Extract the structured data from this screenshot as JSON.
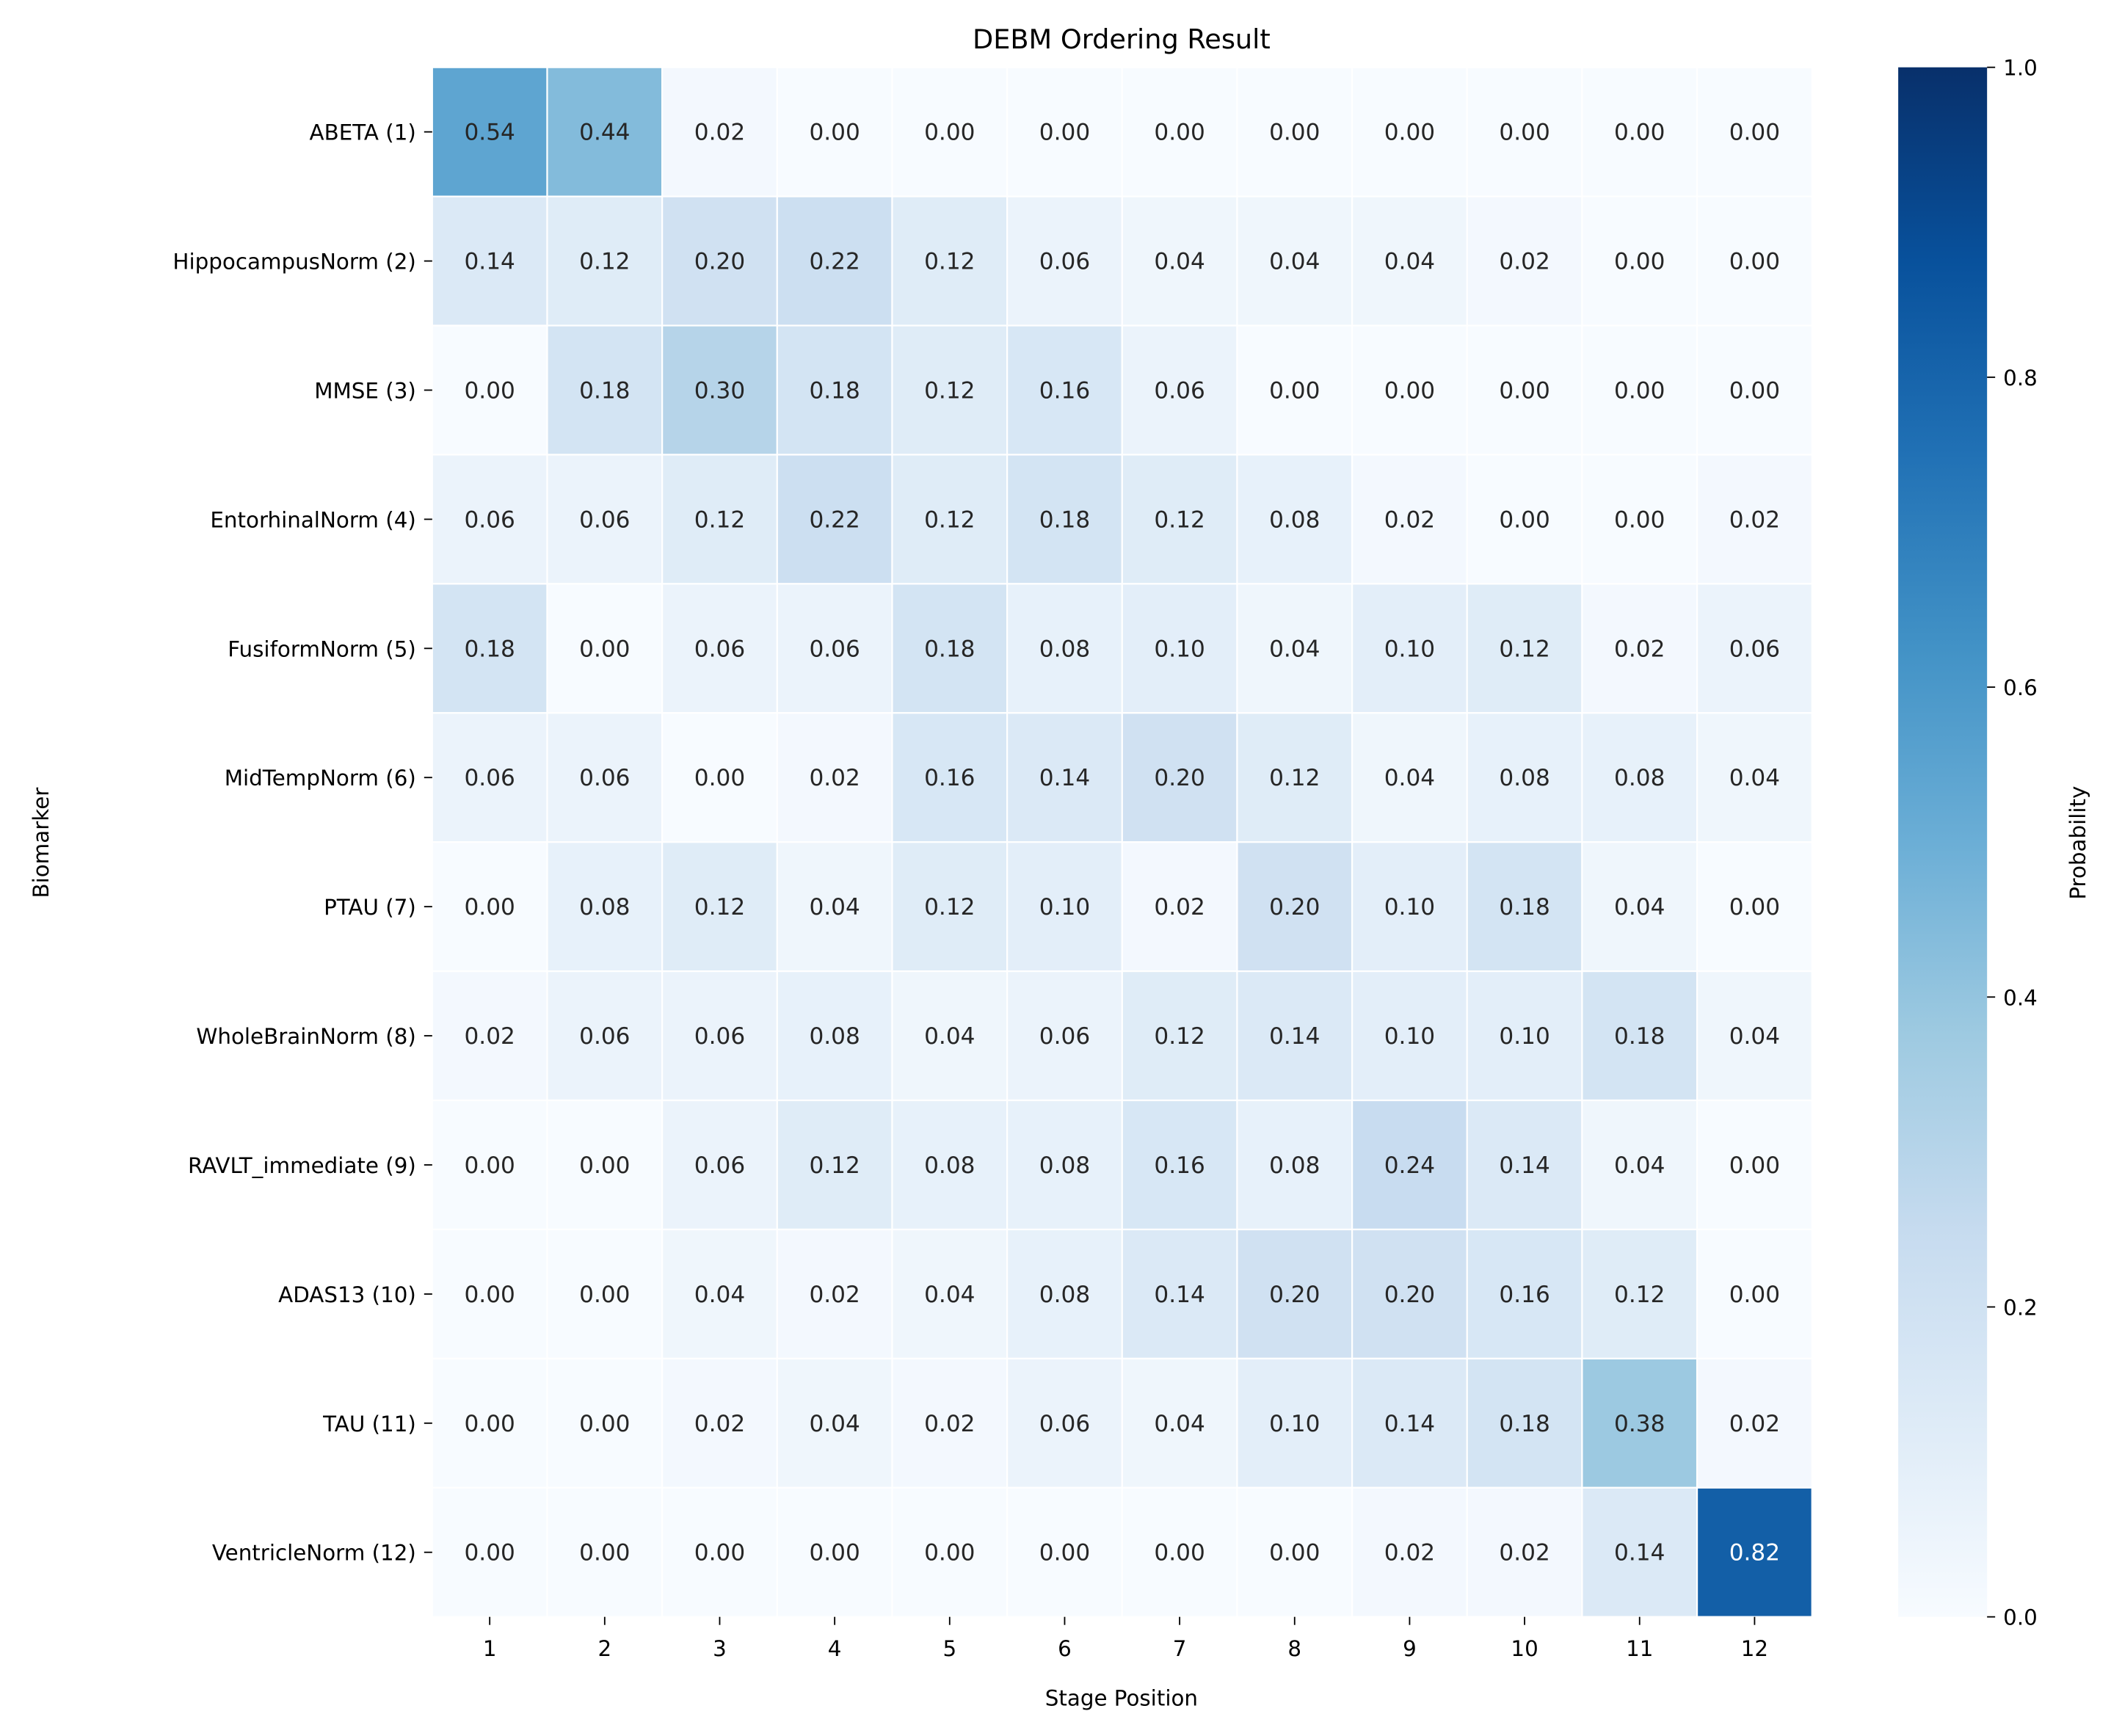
{
  "chart_data": {
    "type": "heatmap",
    "title": "DEBM Ordering Result",
    "xlabel": "Stage Position",
    "ylabel": "Biomarker",
    "colorbar_label": "Probability",
    "colormap": "Blues",
    "vmin": 0.0,
    "vmax": 1.0,
    "colorbar_ticks": [
      "0.0",
      "0.2",
      "0.4",
      "0.6",
      "0.8",
      "1.0"
    ],
    "x_categories": [
      "1",
      "2",
      "3",
      "4",
      "5",
      "6",
      "7",
      "8",
      "9",
      "10",
      "11",
      "12"
    ],
    "y_categories": [
      "ABETA (1)",
      "HippocampusNorm (2)",
      "MMSE (3)",
      "EntorhinalNorm (4)",
      "FusiformNorm (5)",
      "MidTempNorm (6)",
      "PTAU (7)",
      "WholeBrainNorm (8)",
      "RAVLT_immediate (9)",
      "ADAS13 (10)",
      "TAU (11)",
      "VentricleNorm (12)"
    ],
    "values": [
      [
        0.54,
        0.44,
        0.02,
        0.0,
        0.0,
        0.0,
        0.0,
        0.0,
        0.0,
        0.0,
        0.0,
        0.0
      ],
      [
        0.14,
        0.12,
        0.2,
        0.22,
        0.12,
        0.06,
        0.04,
        0.04,
        0.04,
        0.02,
        0.0,
        0.0
      ],
      [
        0.0,
        0.18,
        0.3,
        0.18,
        0.12,
        0.16,
        0.06,
        0.0,
        0.0,
        0.0,
        0.0,
        0.0
      ],
      [
        0.06,
        0.06,
        0.12,
        0.22,
        0.12,
        0.18,
        0.12,
        0.08,
        0.02,
        0.0,
        0.0,
        0.02
      ],
      [
        0.18,
        0.0,
        0.06,
        0.06,
        0.18,
        0.08,
        0.1,
        0.04,
        0.1,
        0.12,
        0.02,
        0.06
      ],
      [
        0.06,
        0.06,
        0.0,
        0.02,
        0.16,
        0.14,
        0.2,
        0.12,
        0.04,
        0.08,
        0.08,
        0.04
      ],
      [
        0.0,
        0.08,
        0.12,
        0.04,
        0.12,
        0.1,
        0.02,
        0.2,
        0.1,
        0.18,
        0.04,
        0.0
      ],
      [
        0.02,
        0.06,
        0.06,
        0.08,
        0.04,
        0.06,
        0.12,
        0.14,
        0.1,
        0.1,
        0.18,
        0.04
      ],
      [
        0.0,
        0.0,
        0.06,
        0.12,
        0.08,
        0.08,
        0.16,
        0.08,
        0.24,
        0.14,
        0.04,
        0.0
      ],
      [
        0.0,
        0.0,
        0.04,
        0.02,
        0.04,
        0.08,
        0.14,
        0.2,
        0.2,
        0.16,
        0.12,
        0.0
      ],
      [
        0.0,
        0.0,
        0.02,
        0.04,
        0.02,
        0.06,
        0.04,
        0.1,
        0.14,
        0.18,
        0.38,
        0.02
      ],
      [
        0.0,
        0.0,
        0.0,
        0.0,
        0.0,
        0.0,
        0.0,
        0.0,
        0.02,
        0.02,
        0.14,
        0.82
      ]
    ],
    "annotation_format": "0.00"
  }
}
